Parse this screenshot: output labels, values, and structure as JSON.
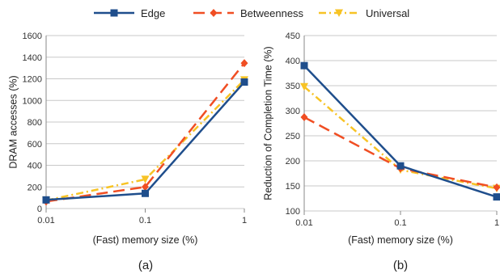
{
  "legend": [
    "Edge",
    "Betweenness",
    "Universal"
  ],
  "colors": {
    "Edge": "#1f4e8c",
    "Betweenness": "#f04e23",
    "Universal": "#f7c325"
  },
  "markers": {
    "Edge": "square",
    "Betweenness": "diamond",
    "Universal": "triangle-down"
  },
  "line_styles": {
    "Edge": "solid",
    "Betweenness": "long-dash",
    "Universal": "dash-dot"
  },
  "chart_data": [
    {
      "type": "line",
      "panel_label": "(a)",
      "categories": [
        "0.01",
        "0.1",
        "1"
      ],
      "xlabel": "(Fast) memory size (%)",
      "ylabel": "DRAM accesses (%)",
      "ylim": [
        0,
        1600
      ],
      "yticks": [
        0,
        200,
        400,
        600,
        800,
        1000,
        1200,
        1400,
        1600
      ],
      "x_scale": "log",
      "grid": "horizontal",
      "series": [
        {
          "name": "Edge",
          "values": [
            80,
            140,
            1170
          ]
        },
        {
          "name": "Betweenness",
          "values": [
            65,
            200,
            1345
          ]
        },
        {
          "name": "Universal",
          "values": [
            75,
            270,
            1190
          ]
        }
      ]
    },
    {
      "type": "line",
      "panel_label": "(b)",
      "categories": [
        "0.01",
        "0.1",
        "1"
      ],
      "xlabel": "(Fast) memory size (%)",
      "ylabel": "Reduction of Completion Time (%)",
      "ylim": [
        100,
        450
      ],
      "yticks": [
        100,
        150,
        200,
        250,
        300,
        350,
        400,
        450
      ],
      "x_scale": "log",
      "grid": "horizontal",
      "series": [
        {
          "name": "Edge",
          "values": [
            390,
            190,
            128
          ]
        },
        {
          "name": "Betweenness",
          "values": [
            287,
            185,
            147
          ]
        },
        {
          "name": "Universal",
          "values": [
            348,
            182,
            145
          ]
        }
      ]
    }
  ]
}
